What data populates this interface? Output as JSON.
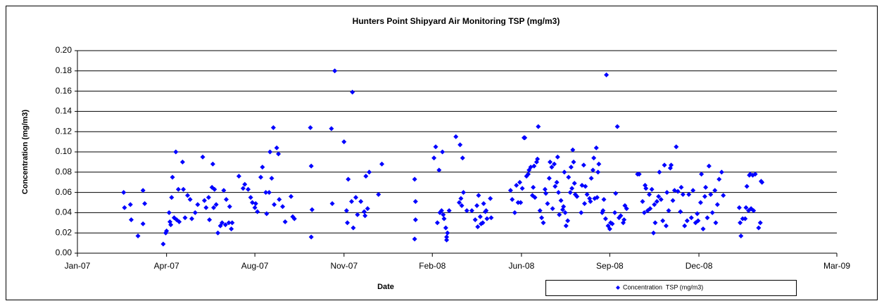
{
  "chart_data": {
    "type": "scatter",
    "title": "Hunters Point Shipyard Air Monitoring TSP (mg/m3)",
    "xlabel": "Date",
    "ylabel": "Concentration (mg/m3)",
    "xlim": [
      39083,
      39986
    ],
    "xticks": [
      {
        "value": 39083,
        "label": "Jan-07"
      },
      {
        "value": 39189,
        "label": "Apr-07"
      },
      {
        "value": 39294,
        "label": "Aug-07"
      },
      {
        "value": 39400,
        "label": "Nov-07"
      },
      {
        "value": 39505,
        "label": "Feb-08"
      },
      {
        "value": 39611,
        "label": "Jun-08"
      },
      {
        "value": 39716,
        "label": "Sep-08"
      },
      {
        "value": 39822,
        "label": "Dec-08"
      },
      {
        "value": 39986,
        "label": "Mar-09"
      }
    ],
    "ylim": [
      0,
      0.2
    ],
    "yticks": [
      {
        "value": 0,
        "label": "0.00"
      },
      {
        "value": 0.02,
        "label": "0.02"
      },
      {
        "value": 0.04,
        "label": "0.04"
      },
      {
        "value": 0.06,
        "label": "0.06"
      },
      {
        "value": 0.08,
        "label": "0.08"
      },
      {
        "value": 0.1,
        "label": "0.10"
      },
      {
        "value": 0.12,
        "label": "0.12"
      },
      {
        "value": 0.14,
        "label": "0.14"
      },
      {
        "value": 0.16,
        "label": "0.16"
      },
      {
        "value": 0.18,
        "label": "0.18"
      },
      {
        "value": 0.2,
        "label": "0.20"
      }
    ],
    "grid": true,
    "legend": "bottom-right",
    "x": [
      39138,
      39139,
      39146,
      39147,
      39155,
      39161,
      39161,
      39163,
      39185,
      39188,
      39189,
      39192,
      39193,
      39194,
      39195,
      39196,
      39198,
      39200,
      39201,
      39203,
      39204,
      39208,
      39209,
      39211,
      39214,
      39217,
      39219,
      39223,
      39226,
      39232,
      39234,
      39236,
      39239,
      39240,
      39243,
      39244,
      39245,
      39246,
      39248,
      39250,
      39253,
      39255,
      39257,
      39259,
      39260,
      39263,
      39264,
      39266,
      39267,
      39275,
      39280,
      39282,
      39286,
      39289,
      39291,
      39294,
      39295,
      39297,
      39301,
      39303,
      39307,
      39308,
      39311,
      39312,
      39314,
      39316,
      39317,
      39320,
      39322,
      39323,
      39327,
      39330,
      39337,
      39339,
      39341,
      39360,
      39361,
      39361,
      39362,
      39385,
      39386,
      39389,
      39400,
      39403,
      39404,
      39405,
      39409,
      39410,
      39411,
      39414,
      39416,
      39420,
      39424,
      39425,
      39426,
      39428,
      39430,
      39441,
      39445,
      39484,
      39484,
      39485,
      39485,
      39507,
      39509,
      39511,
      39513,
      39514,
      39516,
      39517,
      39518,
      39519,
      39521,
      39522,
      39522,
      39523,
      39525,
      39533,
      39537,
      39538,
      39539,
      39540,
      39541,
      39542,
      39546,
      39552,
      39556,
      39558,
      39559,
      39560,
      39562,
      39563,
      39565,
      39566,
      39568,
      39569,
      39570,
      39574,
      39575,
      39598,
      39600,
      39603,
      39605,
      39607,
      39609,
      39610,
      39612,
      39614,
      39615,
      39617,
      39619,
      39620,
      39622,
      39624,
      39625,
      39626,
      39627,
      39629,
      39630,
      39631,
      39633,
      39635,
      39637,
      39639,
      39640,
      39642,
      39644,
      39645,
      39647,
      39648,
      39650,
      39651,
      39653,
      39654,
      39655,
      39656,
      39658,
      39660,
      39661,
      39662,
      39663,
      39664,
      39666,
      39667,
      39669,
      39670,
      39671,
      39672,
      39673,
      39674,
      39675,
      39677,
      39682,
      39683,
      39685,
      39686,
      39687,
      39689,
      39692,
      39693,
      39694,
      39696,
      39697,
      39698,
      39700,
      39701,
      39702,
      39703,
      39707,
      39708,
      39709,
      39711,
      39712,
      39714,
      39716,
      39717,
      39719,
      39722,
      39723,
      39725,
      39727,
      39729,
      39732,
      39733,
      39734,
      39736,
      39749,
      39751,
      39755,
      39757,
      39758,
      39759,
      39761,
      39763,
      39764,
      39766,
      39768,
      39769,
      39770,
      39772,
      39774,
      39775,
      39777,
      39779,
      39781,
      39783,
      39784,
      39786,
      39788,
      39789,
      39791,
      39793,
      39795,
      39797,
      39800,
      39801,
      39803,
      39805,
      39808,
      39810,
      39813,
      39815,
      39818,
      39820,
      39821,
      39824,
      39825,
      39827,
      39829,
      39830,
      39832,
      39834,
      39836,
      39838,
      39841,
      39842,
      39844,
      39846,
      39849,
      39851,
      39870,
      39871,
      39872,
      39874,
      39877,
      39878,
      39879,
      39881,
      39882,
      39883,
      39884,
      39886,
      39887,
      39889,
      39893,
      39895,
      39896,
      39897
    ],
    "series": [
      {
        "name": "Concentration  TSP (mg/m3)",
        "color": "#0000ff",
        "values": [
          0.06,
          0.045,
          0.048,
          0.033,
          0.017,
          0.062,
          0.029,
          0.049,
          0.009,
          0.02,
          0.022,
          0.04,
          0.031,
          0.028,
          0.055,
          0.075,
          0.035,
          0.1,
          0.033,
          0.063,
          0.031,
          0.09,
          0.063,
          0.035,
          0.057,
          0.053,
          0.034,
          0.04,
          0.048,
          0.095,
          0.052,
          0.045,
          0.055,
          0.033,
          0.065,
          0.088,
          0.045,
          0.063,
          0.048,
          0.02,
          0.027,
          0.03,
          0.062,
          0.028,
          0.053,
          0.03,
          0.046,
          0.024,
          0.03,
          0.076,
          0.064,
          0.068,
          0.063,
          0.055,
          0.05,
          0.045,
          0.049,
          0.041,
          0.075,
          0.085,
          0.06,
          0.039,
          0.06,
          0.1,
          0.074,
          0.124,
          0.048,
          0.104,
          0.098,
          0.053,
          0.046,
          0.031,
          0.056,
          0.036,
          0.034,
          0.124,
          0.086,
          0.016,
          0.043,
          0.123,
          0.049,
          0.18,
          0.11,
          0.042,
          0.03,
          0.073,
          0.051,
          0.159,
          0.025,
          0.055,
          0.038,
          0.051,
          0.041,
          0.037,
          0.076,
          0.044,
          0.08,
          0.058,
          0.088,
          0.073,
          0.014,
          0.051,
          0.033,
          0.094,
          0.105,
          0.03,
          0.082,
          0.04,
          0.042,
          0.1,
          0.038,
          0.034,
          0.025,
          0.016,
          0.013,
          0.02,
          0.042,
          0.115,
          0.05,
          0.107,
          0.054,
          0.047,
          0.094,
          0.06,
          0.042,
          0.042,
          0.033,
          0.047,
          0.026,
          0.057,
          0.036,
          0.029,
          0.03,
          0.049,
          0.041,
          0.042,
          0.034,
          0.054,
          0.035,
          0.062,
          0.053,
          0.04,
          0.067,
          0.05,
          0.07,
          0.05,
          0.064,
          0.114,
          0.114,
          0.076,
          0.078,
          0.082,
          0.085,
          0.057,
          0.065,
          0.086,
          0.055,
          0.09,
          0.093,
          0.125,
          0.042,
          0.035,
          0.03,
          0.063,
          0.059,
          0.049,
          0.074,
          0.09,
          0.085,
          0.044,
          0.088,
          0.066,
          0.07,
          0.095,
          0.06,
          0.038,
          0.052,
          0.043,
          0.046,
          0.08,
          0.04,
          0.027,
          0.032,
          0.075,
          0.06,
          0.085,
          0.064,
          0.102,
          0.09,
          0.069,
          0.058,
          0.056,
          0.04,
          0.067,
          0.087,
          0.049,
          0.066,
          0.058,
          0.054,
          0.051,
          0.074,
          0.082,
          0.094,
          0.054,
          0.104,
          0.055,
          0.08,
          0.088,
          0.04,
          0.042,
          0.053,
          0.034,
          0.176,
          0.027,
          0.024,
          0.03,
          0.029,
          0.04,
          0.059,
          0.125,
          0.035,
          0.037,
          0.03,
          0.033,
          0.047,
          0.044,
          0.078,
          0.078,
          0.051,
          0.04,
          0.067,
          0.064,
          0.042,
          0.058,
          0.044,
          0.063,
          0.02,
          0.048,
          0.03,
          0.051,
          0.056,
          0.08,
          0.053,
          0.032,
          0.087,
          0.027,
          0.06,
          0.042,
          0.084,
          0.087,
          0.052,
          0.062,
          0.105,
          0.061,
          0.041,
          0.065,
          0.058,
          0.027,
          0.032,
          0.058,
          0.035,
          0.062,
          0.03,
          0.039,
          0.032,
          0.05,
          0.078,
          0.024,
          0.056,
          0.065,
          0.035,
          0.086,
          0.058,
          0.04,
          0.062,
          0.03,
          0.048,
          0.073,
          0.08,
          0.057,
          0.045,
          0.03,
          0.017,
          0.034,
          0.034,
          0.045,
          0.066,
          0.042,
          0.077,
          0.078,
          0.044,
          0.077,
          0.042,
          0.078,
          0.025,
          0.03,
          0.071,
          0.07
        ]
      }
    ]
  }
}
